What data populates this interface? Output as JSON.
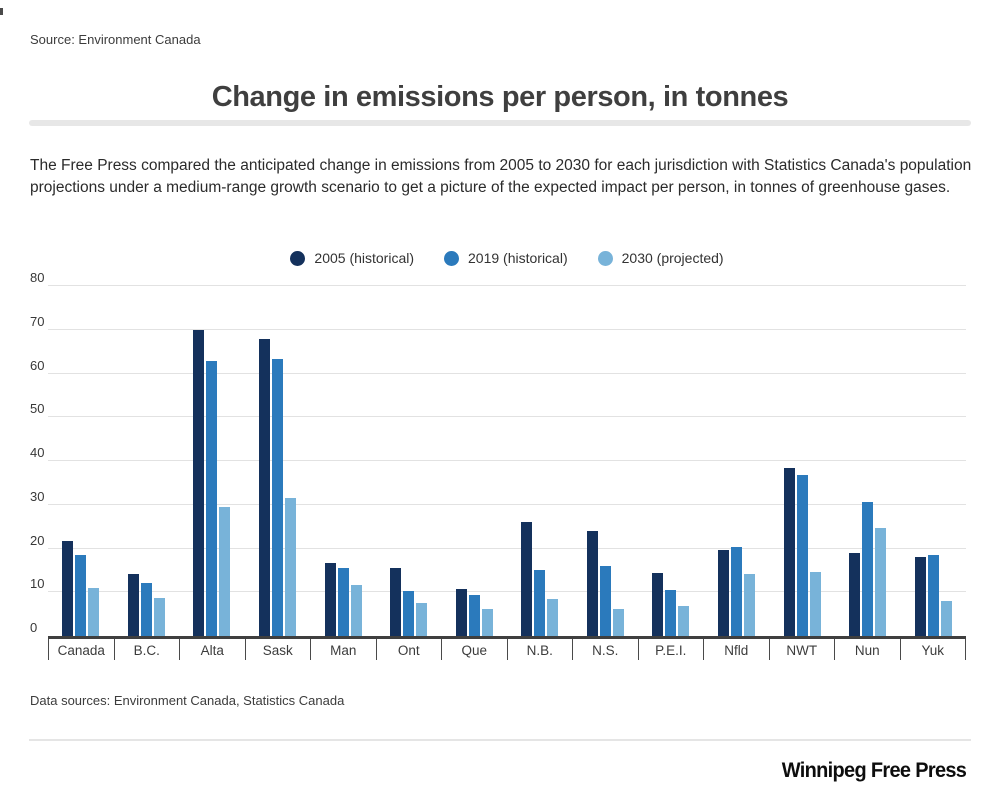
{
  "page": {
    "source_label": "Source: Environment Canada",
    "title": "Change in emissions per person, in tonnes",
    "description": "The Free Press compared the anticipated change in emissions from 2005 to 2030 for each jurisdiction with Statistics Canada's population projections under a medium-range growth scenario to get a picture of the expected impact per person, in tonnes of greenhouse gases.",
    "footer_sources": "Data sources: Environment Canada, Statistics Canada",
    "brand": "Winnipeg Free Press"
  },
  "colors": {
    "series_2005": "#14315c",
    "series_2019": "#2b7abc",
    "series_2030": "#78b3d9",
    "gridline": "#e2e2e2",
    "axis": "#3f3f3f",
    "title_text": "#3f3f3f",
    "body_text": "#2b2b2b",
    "divider": "#e7e7e7"
  },
  "chart_data": {
    "type": "bar",
    "title": "Change in emissions per person, in tonnes",
    "xlabel": "",
    "ylabel": "",
    "ylim": [
      0,
      80
    ],
    "yticks": [
      0,
      10,
      20,
      30,
      40,
      50,
      60,
      70,
      80
    ],
    "grid": true,
    "legend_position": "top-center",
    "categories": [
      "Canada",
      "B.C.",
      "Alta",
      "Sask",
      "Man",
      "Ont",
      "Que",
      "N.B.",
      "N.S.",
      "P.E.I.",
      "Nfld",
      "NWT",
      "Nun",
      "Yuk"
    ],
    "series": [
      {
        "name": "2005 (historical)",
        "color": "#14315c",
        "values": [
          21.8,
          14.2,
          70.0,
          67.8,
          16.6,
          15.6,
          10.7,
          26.0,
          24.0,
          14.4,
          19.6,
          38.3,
          18.9,
          18.0
        ]
      },
      {
        "name": "2019 (historical)",
        "color": "#2b7abc",
        "values": [
          18.6,
          12.1,
          62.8,
          63.3,
          15.6,
          10.4,
          9.4,
          15.2,
          16.0,
          10.5,
          20.3,
          36.9,
          30.6,
          18.6
        ]
      },
      {
        "name": "2030 (projected)",
        "color": "#78b3d9",
        "values": [
          11.0,
          8.6,
          29.5,
          31.6,
          11.7,
          7.5,
          6.1,
          8.4,
          6.1,
          6.8,
          14.2,
          14.7,
          24.6,
          8.0
        ]
      }
    ]
  }
}
